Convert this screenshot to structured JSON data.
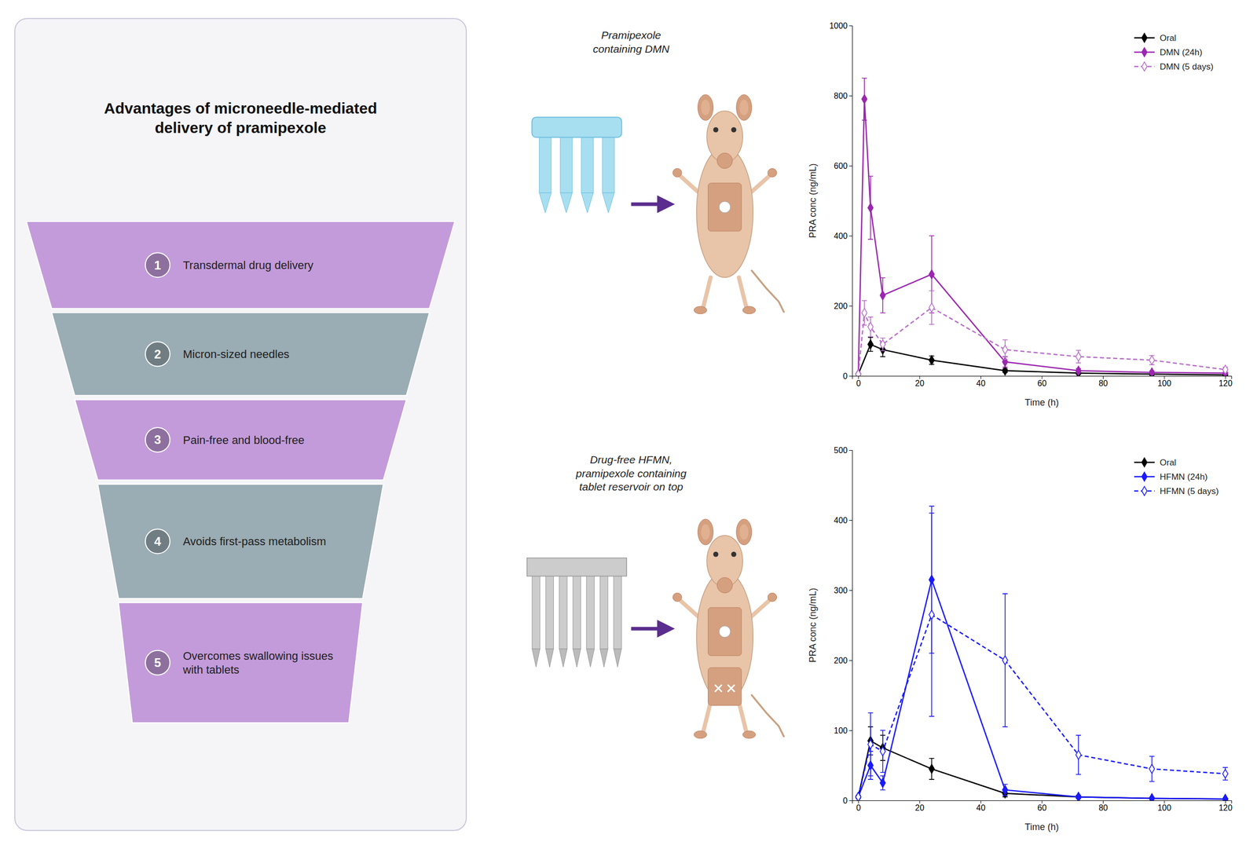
{
  "chart_data": [
    {
      "type": "funnel",
      "title": "Advantages of microneedle-mediated\ndelivery of pramipexole",
      "categories": [
        "Transdermal drug delivery",
        "Micron-sized needles",
        "Pain-free and blood-free",
        "Avoids first-pass metabolism",
        "Overcomes swallowing issues\nwith tablets"
      ],
      "values": [
        1,
        2,
        3,
        4,
        5
      ],
      "data_labels": true,
      "colors": [
        "#c39bda",
        "#9aacb4",
        "#c39bda",
        "#9aacb4",
        "#c39bda"
      ]
    },
    {
      "type": "diagram",
      "title": "Pramipexole\ncontaining DMN",
      "color": "#5b2d8e"
    },
    {
      "type": "diagram",
      "title": "Drug-free HFMN,\npramipexole containing\ntablet reservoir on top",
      "color": "#5b2d8e"
    },
    {
      "type": "line",
      "xlabel": "Time (h)",
      "ylabel": "PRA conc (ng/mL)",
      "xlim": [
        -2,
        122
      ],
      "xticks": [
        0,
        20,
        40,
        60,
        80,
        100,
        120
      ],
      "ylim": [
        0,
        1000
      ],
      "yticks": [
        0,
        200,
        400,
        600,
        800,
        1000
      ],
      "grid": false,
      "legend": "upper right",
      "series": [
        {
          "name": "Oral",
          "color": "#000000",
          "marker": "diamond",
          "line_style": "solid",
          "x": [
            0,
            4,
            8,
            24,
            48,
            72,
            96,
            120
          ],
          "values": [
            5,
            90,
            75,
            45,
            15,
            8,
            5,
            3
          ],
          "errors": [
            2,
            20,
            20,
            12,
            5,
            3,
            2,
            1
          ]
        },
        {
          "name": "DMN (24h)",
          "color": "#9b27af",
          "marker": "diamond",
          "line_style": "solid",
          "x": [
            0,
            2,
            4,
            8,
            24,
            48,
            72,
            96,
            120
          ],
          "values": [
            5,
            790,
            480,
            230,
            290,
            40,
            15,
            10,
            8
          ],
          "errors": [
            2,
            60,
            90,
            50,
            110,
            15,
            6,
            4,
            2
          ]
        },
        {
          "name": "DMN (5 days)",
          "color": "#b86ec8",
          "marker": "diamond-open",
          "line_style": "dashed",
          "x": [
            0,
            2,
            4,
            8,
            24,
            48,
            72,
            96,
            120
          ],
          "values": [
            5,
            180,
            140,
            90,
            195,
            75,
            55,
            45,
            18
          ],
          "errors": [
            2,
            35,
            28,
            18,
            48,
            28,
            18,
            13,
            7
          ]
        }
      ]
    },
    {
      "type": "line",
      "xlabel": "Time (h)",
      "ylabel": "PRA conc (ng/mL)",
      "xlim": [
        -2,
        122
      ],
      "xticks": [
        0,
        20,
        40,
        60,
        80,
        100,
        120
      ],
      "ylim": [
        0,
        500
      ],
      "yticks": [
        0,
        100,
        200,
        300,
        400,
        500
      ],
      "grid": false,
      "legend": "upper right",
      "series": [
        {
          "name": "Oral",
          "color": "#000000",
          "marker": "diamond",
          "line_style": "solid",
          "x": [
            0,
            4,
            8,
            24,
            48,
            72,
            96,
            120
          ],
          "values": [
            5,
            85,
            75,
            45,
            10,
            5,
            3,
            2
          ],
          "errors": [
            2,
            20,
            18,
            15,
            5,
            2,
            1,
            1
          ]
        },
        {
          "name": "HFMN (24h)",
          "color": "#1a1aff",
          "marker": "diamond",
          "line_style": "solid",
          "x": [
            0,
            4,
            8,
            24,
            48,
            72,
            96,
            120
          ],
          "values": [
            5,
            50,
            25,
            315,
            15,
            5,
            3,
            2
          ],
          "errors": [
            2,
            20,
            10,
            105,
            8,
            2,
            1,
            1
          ]
        },
        {
          "name": "HFMN (5 days)",
          "color": "#1a1aff",
          "marker": "diamond-open",
          "line_style": "dashed",
          "x": [
            0,
            4,
            8,
            24,
            48,
            72,
            96,
            120
          ],
          "values": [
            5,
            80,
            70,
            265,
            200,
            65,
            45,
            38
          ],
          "errors": [
            2,
            45,
            30,
            145,
            95,
            28,
            18,
            9
          ]
        }
      ]
    }
  ]
}
